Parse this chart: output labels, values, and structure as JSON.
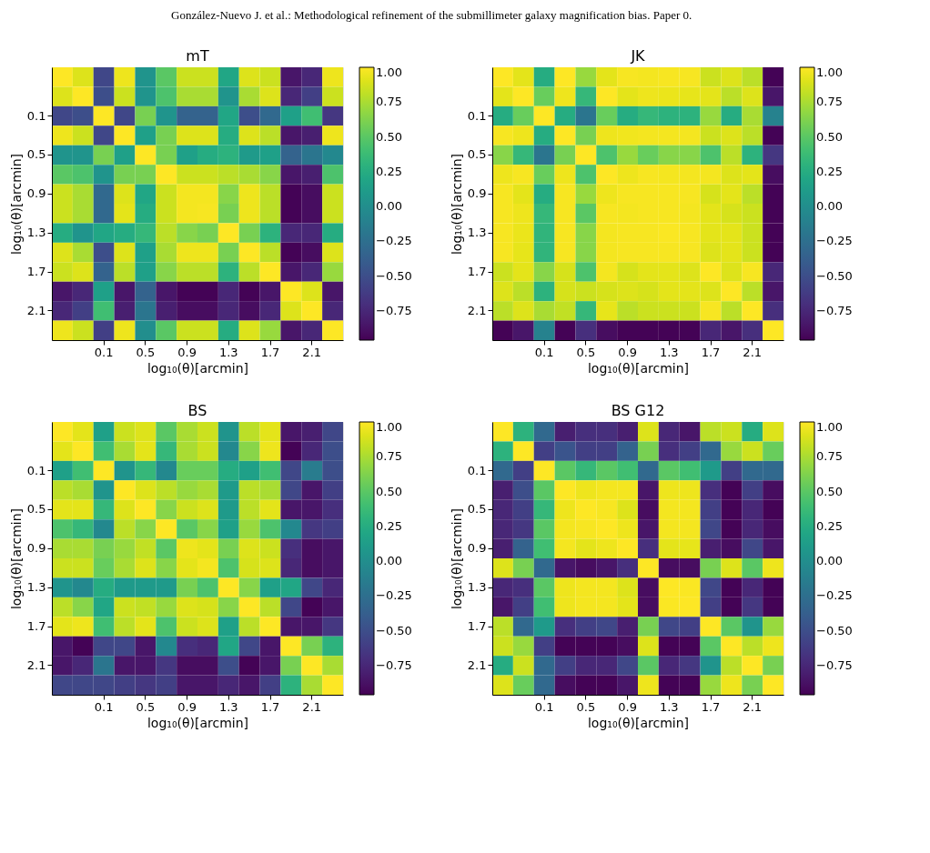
{
  "chart_data": [
    {
      "type": "heatmap",
      "title": "mT",
      "annotations": [
        "González-Nuevo J. et al.: Methodological refinement of the submillimeter galaxy magnification bias. Paper 0."
      ],
      "xlabel": "log₁₀(θ)[arcmin]",
      "ylabel": "log₁₀(θ)[arcmin]",
      "categories": [
        null,
        null,
        "0.1",
        null,
        "0.5",
        null,
        "0.9",
        null,
        "1.3",
        null,
        "1.7",
        null,
        "2.1",
        null
      ],
      "y_categories": [
        null,
        null,
        "0.1",
        null,
        "0.5",
        null,
        "0.9",
        null,
        "1.3",
        null,
        "1.7",
        null,
        "2.1",
        null
      ],
      "clim": [
        -0.96,
        1
      ],
      "cticks": [
        {
          "value": 1,
          "label": "1.00"
        },
        {
          "value": 0.75,
          "label": "0.75"
        },
        {
          "value": 0.5,
          "label": "0.50"
        },
        {
          "value": 0.25,
          "label": "0.25"
        },
        {
          "value": 0,
          "label": "0.00"
        },
        {
          "value": -0.25,
          "label": "−0.25"
        },
        {
          "value": -0.5,
          "label": "−0.50"
        },
        {
          "value": -0.75,
          "label": "−0.75"
        }
      ],
      "cells": [
        [
          1.0,
          0.9,
          -0.55,
          0.95,
          0.05,
          0.5,
          0.85,
          0.85,
          0.2,
          0.9,
          0.85,
          -0.85,
          -0.75,
          0.95
        ],
        [
          0.9,
          1.0,
          -0.5,
          0.85,
          0.05,
          0.45,
          0.75,
          0.75,
          0.05,
          0.75,
          0.9,
          -0.75,
          -0.6,
          0.85
        ],
        [
          -0.55,
          -0.5,
          1.0,
          -0.55,
          0.6,
          0.05,
          -0.35,
          -0.35,
          0.2,
          -0.5,
          -0.3,
          0.15,
          0.4,
          -0.65
        ],
        [
          0.95,
          0.85,
          -0.55,
          1.0,
          0.15,
          0.6,
          0.9,
          0.9,
          0.25,
          0.9,
          0.8,
          -0.85,
          -0.8,
          0.95
        ],
        [
          0.05,
          0.05,
          0.6,
          0.15,
          1.0,
          0.6,
          0.15,
          0.25,
          0.3,
          0.1,
          0.15,
          -0.35,
          -0.2,
          -0.05
        ],
        [
          0.5,
          0.45,
          0.05,
          0.6,
          0.6,
          1.0,
          0.85,
          0.85,
          0.8,
          0.75,
          0.65,
          -0.85,
          -0.8,
          0.45
        ],
        [
          0.85,
          0.75,
          -0.3,
          0.9,
          0.2,
          0.85,
          0.97,
          0.97,
          0.65,
          0.95,
          0.8,
          -0.95,
          -0.9,
          0.85
        ],
        [
          0.85,
          0.75,
          -0.3,
          0.92,
          0.25,
          0.85,
          0.97,
          0.98,
          0.6,
          0.95,
          0.8,
          -0.95,
          -0.9,
          0.85
        ],
        [
          0.25,
          0.05,
          0.2,
          0.25,
          0.35,
          0.8,
          0.65,
          0.6,
          1.0,
          0.6,
          0.3,
          -0.75,
          -0.75,
          0.25
        ],
        [
          0.9,
          0.75,
          -0.5,
          0.9,
          0.15,
          0.75,
          0.95,
          0.95,
          0.6,
          1.0,
          0.8,
          -0.95,
          -0.9,
          0.9
        ],
        [
          0.85,
          0.9,
          -0.35,
          0.8,
          0.15,
          0.65,
          0.8,
          0.8,
          0.3,
          0.8,
          1.0,
          -0.85,
          -0.75,
          0.7
        ],
        [
          -0.85,
          -0.75,
          0.15,
          -0.85,
          -0.35,
          -0.85,
          -0.95,
          -0.95,
          -0.75,
          -0.95,
          -0.85,
          1.0,
          0.9,
          -0.85
        ],
        [
          -0.75,
          -0.6,
          0.4,
          -0.8,
          -0.2,
          -0.8,
          -0.9,
          -0.9,
          -0.75,
          -0.9,
          -0.75,
          0.9,
          1.0,
          -0.75
        ],
        [
          0.95,
          0.85,
          -0.6,
          0.95,
          0.0,
          0.5,
          0.85,
          0.85,
          0.25,
          0.9,
          0.7,
          -0.85,
          -0.75,
          1.0
        ]
      ]
    },
    {
      "type": "heatmap",
      "title": "JK",
      "xlabel": "log₁₀(θ)[arcmin]",
      "ylabel": "log₁₀(θ)[arcmin]",
      "categories": [
        null,
        null,
        "0.1",
        null,
        "0.5",
        null,
        "0.9",
        null,
        "1.3",
        null,
        "1.7",
        null,
        "2.1",
        null
      ],
      "y_categories": [
        null,
        null,
        "0.1",
        null,
        "0.5",
        null,
        "0.9",
        null,
        "1.3",
        null,
        "1.7",
        null,
        "2.1",
        null
      ],
      "clim": [
        -0.96,
        1
      ],
      "cticks": [
        {
          "value": 1,
          "label": "1.00"
        },
        {
          "value": 0.75,
          "label": "0.75"
        },
        {
          "value": 0.5,
          "label": "0.50"
        },
        {
          "value": 0.25,
          "label": "0.25"
        },
        {
          "value": 0,
          "label": "0.00"
        },
        {
          "value": -0.25,
          "label": "−0.25"
        },
        {
          "value": -0.5,
          "label": "−0.50"
        },
        {
          "value": -0.75,
          "label": "−0.75"
        }
      ],
      "cells": [
        [
          1.0,
          0.92,
          0.25,
          1.0,
          0.7,
          0.92,
          0.98,
          0.97,
          0.98,
          0.98,
          0.85,
          0.9,
          0.8,
          -0.95
        ],
        [
          0.92,
          1.0,
          0.55,
          0.95,
          0.35,
          1.0,
          0.92,
          0.95,
          0.94,
          0.93,
          0.92,
          0.8,
          0.9,
          -0.85
        ],
        [
          0.25,
          0.55,
          1.0,
          0.25,
          -0.2,
          0.55,
          0.25,
          0.35,
          0.3,
          0.3,
          0.7,
          0.25,
          0.75,
          -0.1
        ],
        [
          0.98,
          0.95,
          0.25,
          1.0,
          0.6,
          0.95,
          0.96,
          0.97,
          0.97,
          0.97,
          0.85,
          0.9,
          0.8,
          -0.95
        ],
        [
          0.65,
          0.35,
          -0.2,
          0.6,
          1.0,
          0.45,
          0.7,
          0.55,
          0.65,
          0.65,
          0.45,
          0.8,
          0.3,
          -0.65
        ],
        [
          0.95,
          0.98,
          0.55,
          0.95,
          0.45,
          1.0,
          0.95,
          0.98,
          0.97,
          0.97,
          0.97,
          0.9,
          0.92,
          -0.9
        ],
        [
          0.98,
          0.92,
          0.25,
          0.98,
          0.7,
          0.95,
          0.98,
          0.98,
          0.98,
          0.98,
          0.88,
          0.92,
          0.8,
          -0.95
        ],
        [
          0.98,
          0.95,
          0.35,
          0.98,
          0.5,
          0.98,
          0.97,
          0.98,
          0.98,
          0.97,
          0.92,
          0.88,
          0.85,
          -0.95
        ],
        [
          0.98,
          0.94,
          0.32,
          0.98,
          0.65,
          0.97,
          0.98,
          0.98,
          0.99,
          0.98,
          0.92,
          0.92,
          0.85,
          -0.95
        ],
        [
          0.98,
          0.93,
          0.32,
          0.98,
          0.65,
          0.97,
          0.98,
          0.98,
          0.98,
          0.98,
          0.9,
          0.92,
          0.85,
          -0.95
        ],
        [
          0.85,
          0.92,
          0.65,
          0.88,
          0.45,
          0.97,
          0.88,
          0.92,
          0.92,
          0.9,
          1.0,
          0.9,
          0.98,
          -0.75
        ],
        [
          0.9,
          0.8,
          0.3,
          0.88,
          0.85,
          0.88,
          0.9,
          0.88,
          0.92,
          0.92,
          0.9,
          1.0,
          0.8,
          -0.85
        ],
        [
          0.8,
          0.9,
          0.75,
          0.82,
          0.35,
          0.93,
          0.8,
          0.85,
          0.85,
          0.85,
          0.98,
          0.8,
          1.0,
          -0.7
        ],
        [
          -0.95,
          -0.85,
          -0.1,
          -0.95,
          -0.7,
          -0.9,
          -0.95,
          -0.95,
          -0.95,
          -0.95,
          -0.75,
          -0.85,
          -0.7,
          1.0
        ]
      ]
    },
    {
      "type": "heatmap",
      "title": "BS",
      "xlabel": "log₁₀(θ)[arcmin]",
      "ylabel": "log₁₀(θ)[arcmin]",
      "categories": [
        null,
        null,
        "0.1",
        null,
        "0.5",
        null,
        "0.9",
        null,
        "1.3",
        null,
        "1.7",
        null,
        "2.1",
        null
      ],
      "y_categories": [
        null,
        null,
        "0.1",
        null,
        "0.5",
        null,
        "0.9",
        null,
        "1.3",
        null,
        "1.7",
        null,
        "2.1",
        null
      ],
      "clim": [
        -0.96,
        1
      ],
      "cticks": [
        {
          "value": 1,
          "label": "1.00"
        },
        {
          "value": 0.75,
          "label": "0.75"
        },
        {
          "value": 0.5,
          "label": "0.50"
        },
        {
          "value": 0.25,
          "label": "0.25"
        },
        {
          "value": 0,
          "label": "0.00"
        },
        {
          "value": -0.25,
          "label": "−0.25"
        },
        {
          "value": -0.5,
          "label": "−0.50"
        },
        {
          "value": -0.75,
          "label": "−0.75"
        }
      ],
      "cells": [
        [
          1.0,
          0.92,
          0.15,
          0.85,
          0.9,
          0.5,
          0.75,
          0.85,
          0.05,
          0.8,
          0.92,
          -0.85,
          -0.8,
          -0.55
        ],
        [
          0.92,
          1.0,
          0.4,
          0.75,
          0.92,
          0.35,
          0.75,
          0.85,
          -0.05,
          0.65,
          0.95,
          -0.95,
          -0.75,
          -0.5
        ],
        [
          0.15,
          0.4,
          1.0,
          0.05,
          0.35,
          -0.05,
          0.55,
          0.55,
          0.25,
          0.15,
          0.4,
          -0.55,
          -0.15,
          -0.5
        ],
        [
          0.8,
          0.75,
          0.05,
          1.0,
          0.9,
          0.8,
          0.7,
          0.75,
          0.1,
          0.8,
          0.75,
          -0.55,
          -0.85,
          -0.6
        ],
        [
          0.92,
          0.92,
          0.35,
          0.9,
          1.0,
          0.65,
          0.85,
          0.9,
          0.1,
          0.8,
          0.92,
          -0.85,
          -0.85,
          -0.7
        ],
        [
          0.45,
          0.35,
          -0.05,
          0.8,
          0.65,
          1.0,
          0.5,
          0.65,
          0.15,
          0.7,
          0.45,
          -0.05,
          -0.65,
          -0.6
        ],
        [
          0.75,
          0.75,
          0.6,
          0.7,
          0.82,
          0.5,
          0.95,
          0.92,
          0.6,
          0.9,
          0.85,
          -0.7,
          -0.9,
          -0.85
        ],
        [
          0.85,
          0.85,
          0.55,
          0.75,
          0.9,
          0.65,
          0.92,
          0.97,
          0.45,
          0.88,
          0.9,
          -0.75,
          -0.9,
          -0.85
        ],
        [
          0.05,
          -0.05,
          0.25,
          0.1,
          0.1,
          0.1,
          0.6,
          0.45,
          1.0,
          0.65,
          0.15,
          0.2,
          -0.55,
          -0.75
        ],
        [
          0.8,
          0.65,
          0.2,
          0.85,
          0.82,
          0.7,
          0.9,
          0.88,
          0.65,
          1.0,
          0.8,
          -0.55,
          -0.95,
          -0.85
        ],
        [
          0.92,
          0.95,
          0.4,
          0.8,
          0.92,
          0.45,
          0.85,
          0.9,
          0.15,
          0.8,
          1.0,
          -0.85,
          -0.85,
          -0.65
        ],
        [
          -0.85,
          -0.95,
          -0.55,
          -0.55,
          -0.85,
          -0.05,
          -0.7,
          -0.75,
          0.2,
          -0.55,
          -0.85,
          1.0,
          0.6,
          0.3
        ],
        [
          -0.85,
          -0.75,
          -0.2,
          -0.85,
          -0.85,
          -0.65,
          -0.9,
          -0.9,
          -0.5,
          -0.95,
          -0.85,
          0.6,
          1.0,
          0.75
        ],
        [
          -0.55,
          -0.55,
          -0.55,
          -0.6,
          -0.65,
          -0.6,
          -0.85,
          -0.85,
          -0.75,
          -0.85,
          -0.6,
          0.3,
          0.75,
          1.0
        ]
      ]
    },
    {
      "type": "heatmap",
      "title": "BS G12",
      "xlabel": "log₁₀(θ)[arcmin]",
      "ylabel": "log₁₀(θ)[arcmin]",
      "categories": [
        null,
        null,
        "0.1",
        null,
        "0.5",
        null,
        "0.9",
        null,
        "1.3",
        null,
        "1.7",
        null,
        "2.1",
        null
      ],
      "y_categories": [
        null,
        null,
        "0.1",
        null,
        "0.5",
        null,
        "0.9",
        null,
        "1.3",
        null,
        "1.7",
        null,
        "2.1",
        null
      ],
      "clim": [
        -0.96,
        1
      ],
      "cticks": [
        {
          "value": 1,
          "label": "1.00"
        },
        {
          "value": 0.75,
          "label": "0.75"
        },
        {
          "value": 0.5,
          "label": "0.50"
        },
        {
          "value": 0.25,
          "label": "0.25"
        },
        {
          "value": 0,
          "label": "0.00"
        },
        {
          "value": -0.25,
          "label": "−0.25"
        },
        {
          "value": -0.5,
          "label": "−0.50"
        },
        {
          "value": -0.75,
          "label": "−0.75"
        }
      ],
      "cells": [
        [
          1.0,
          0.3,
          -0.3,
          -0.8,
          -0.7,
          -0.7,
          -0.8,
          0.9,
          -0.75,
          -0.85,
          0.8,
          0.85,
          0.25,
          0.9
        ],
        [
          0.3,
          1.0,
          -0.6,
          -0.45,
          -0.6,
          -0.6,
          -0.35,
          0.6,
          -0.7,
          -0.6,
          -0.3,
          0.7,
          0.85,
          0.55
        ],
        [
          -0.3,
          -0.6,
          1.0,
          0.5,
          0.35,
          0.5,
          0.4,
          -0.3,
          0.5,
          0.4,
          0.1,
          -0.6,
          -0.3,
          -0.3
        ],
        [
          -0.8,
          -0.5,
          0.5,
          1.0,
          0.95,
          0.97,
          0.97,
          -0.85,
          0.95,
          0.95,
          -0.7,
          -0.95,
          -0.6,
          -0.9
        ],
        [
          -0.75,
          -0.6,
          0.35,
          0.95,
          1.0,
          0.98,
          0.9,
          -0.9,
          0.97,
          0.97,
          -0.6,
          -0.95,
          -0.75,
          -0.95
        ],
        [
          -0.75,
          -0.65,
          0.5,
          0.97,
          0.98,
          1.0,
          0.95,
          -0.85,
          0.97,
          0.97,
          -0.55,
          -0.95,
          -0.75,
          -0.9
        ],
        [
          -0.8,
          -0.35,
          0.4,
          0.97,
          0.92,
          0.95,
          1.0,
          -0.7,
          0.92,
          0.93,
          -0.8,
          -0.9,
          -0.55,
          -0.85
        ],
        [
          0.9,
          0.6,
          -0.3,
          -0.85,
          -0.9,
          -0.85,
          -0.7,
          1.0,
          -0.9,
          -0.9,
          0.6,
          0.9,
          0.5,
          0.95
        ],
        [
          -0.75,
          -0.7,
          0.5,
          0.95,
          0.97,
          0.97,
          0.9,
          -0.9,
          1.0,
          0.99,
          -0.55,
          -0.95,
          -0.75,
          -0.95
        ],
        [
          -0.85,
          -0.6,
          0.4,
          0.95,
          0.97,
          0.97,
          0.92,
          -0.9,
          0.99,
          1.0,
          -0.6,
          -0.95,
          -0.65,
          -0.95
        ],
        [
          0.8,
          -0.3,
          0.1,
          -0.7,
          -0.6,
          -0.55,
          -0.8,
          0.6,
          -0.55,
          -0.6,
          1.0,
          0.5,
          0.05,
          0.7
        ],
        [
          0.85,
          0.7,
          -0.6,
          -0.95,
          -0.95,
          -0.95,
          -0.9,
          0.9,
          -0.95,
          -0.95,
          0.5,
          1.0,
          0.8,
          0.95
        ],
        [
          0.25,
          0.85,
          -0.3,
          -0.6,
          -0.75,
          -0.75,
          -0.55,
          0.5,
          -0.75,
          -0.65,
          0.05,
          0.8,
          1.0,
          0.6
        ],
        [
          0.9,
          0.55,
          -0.3,
          -0.9,
          -0.95,
          -0.95,
          -0.85,
          0.95,
          -0.95,
          -0.95,
          0.7,
          0.95,
          0.6,
          1.0
        ]
      ]
    }
  ]
}
